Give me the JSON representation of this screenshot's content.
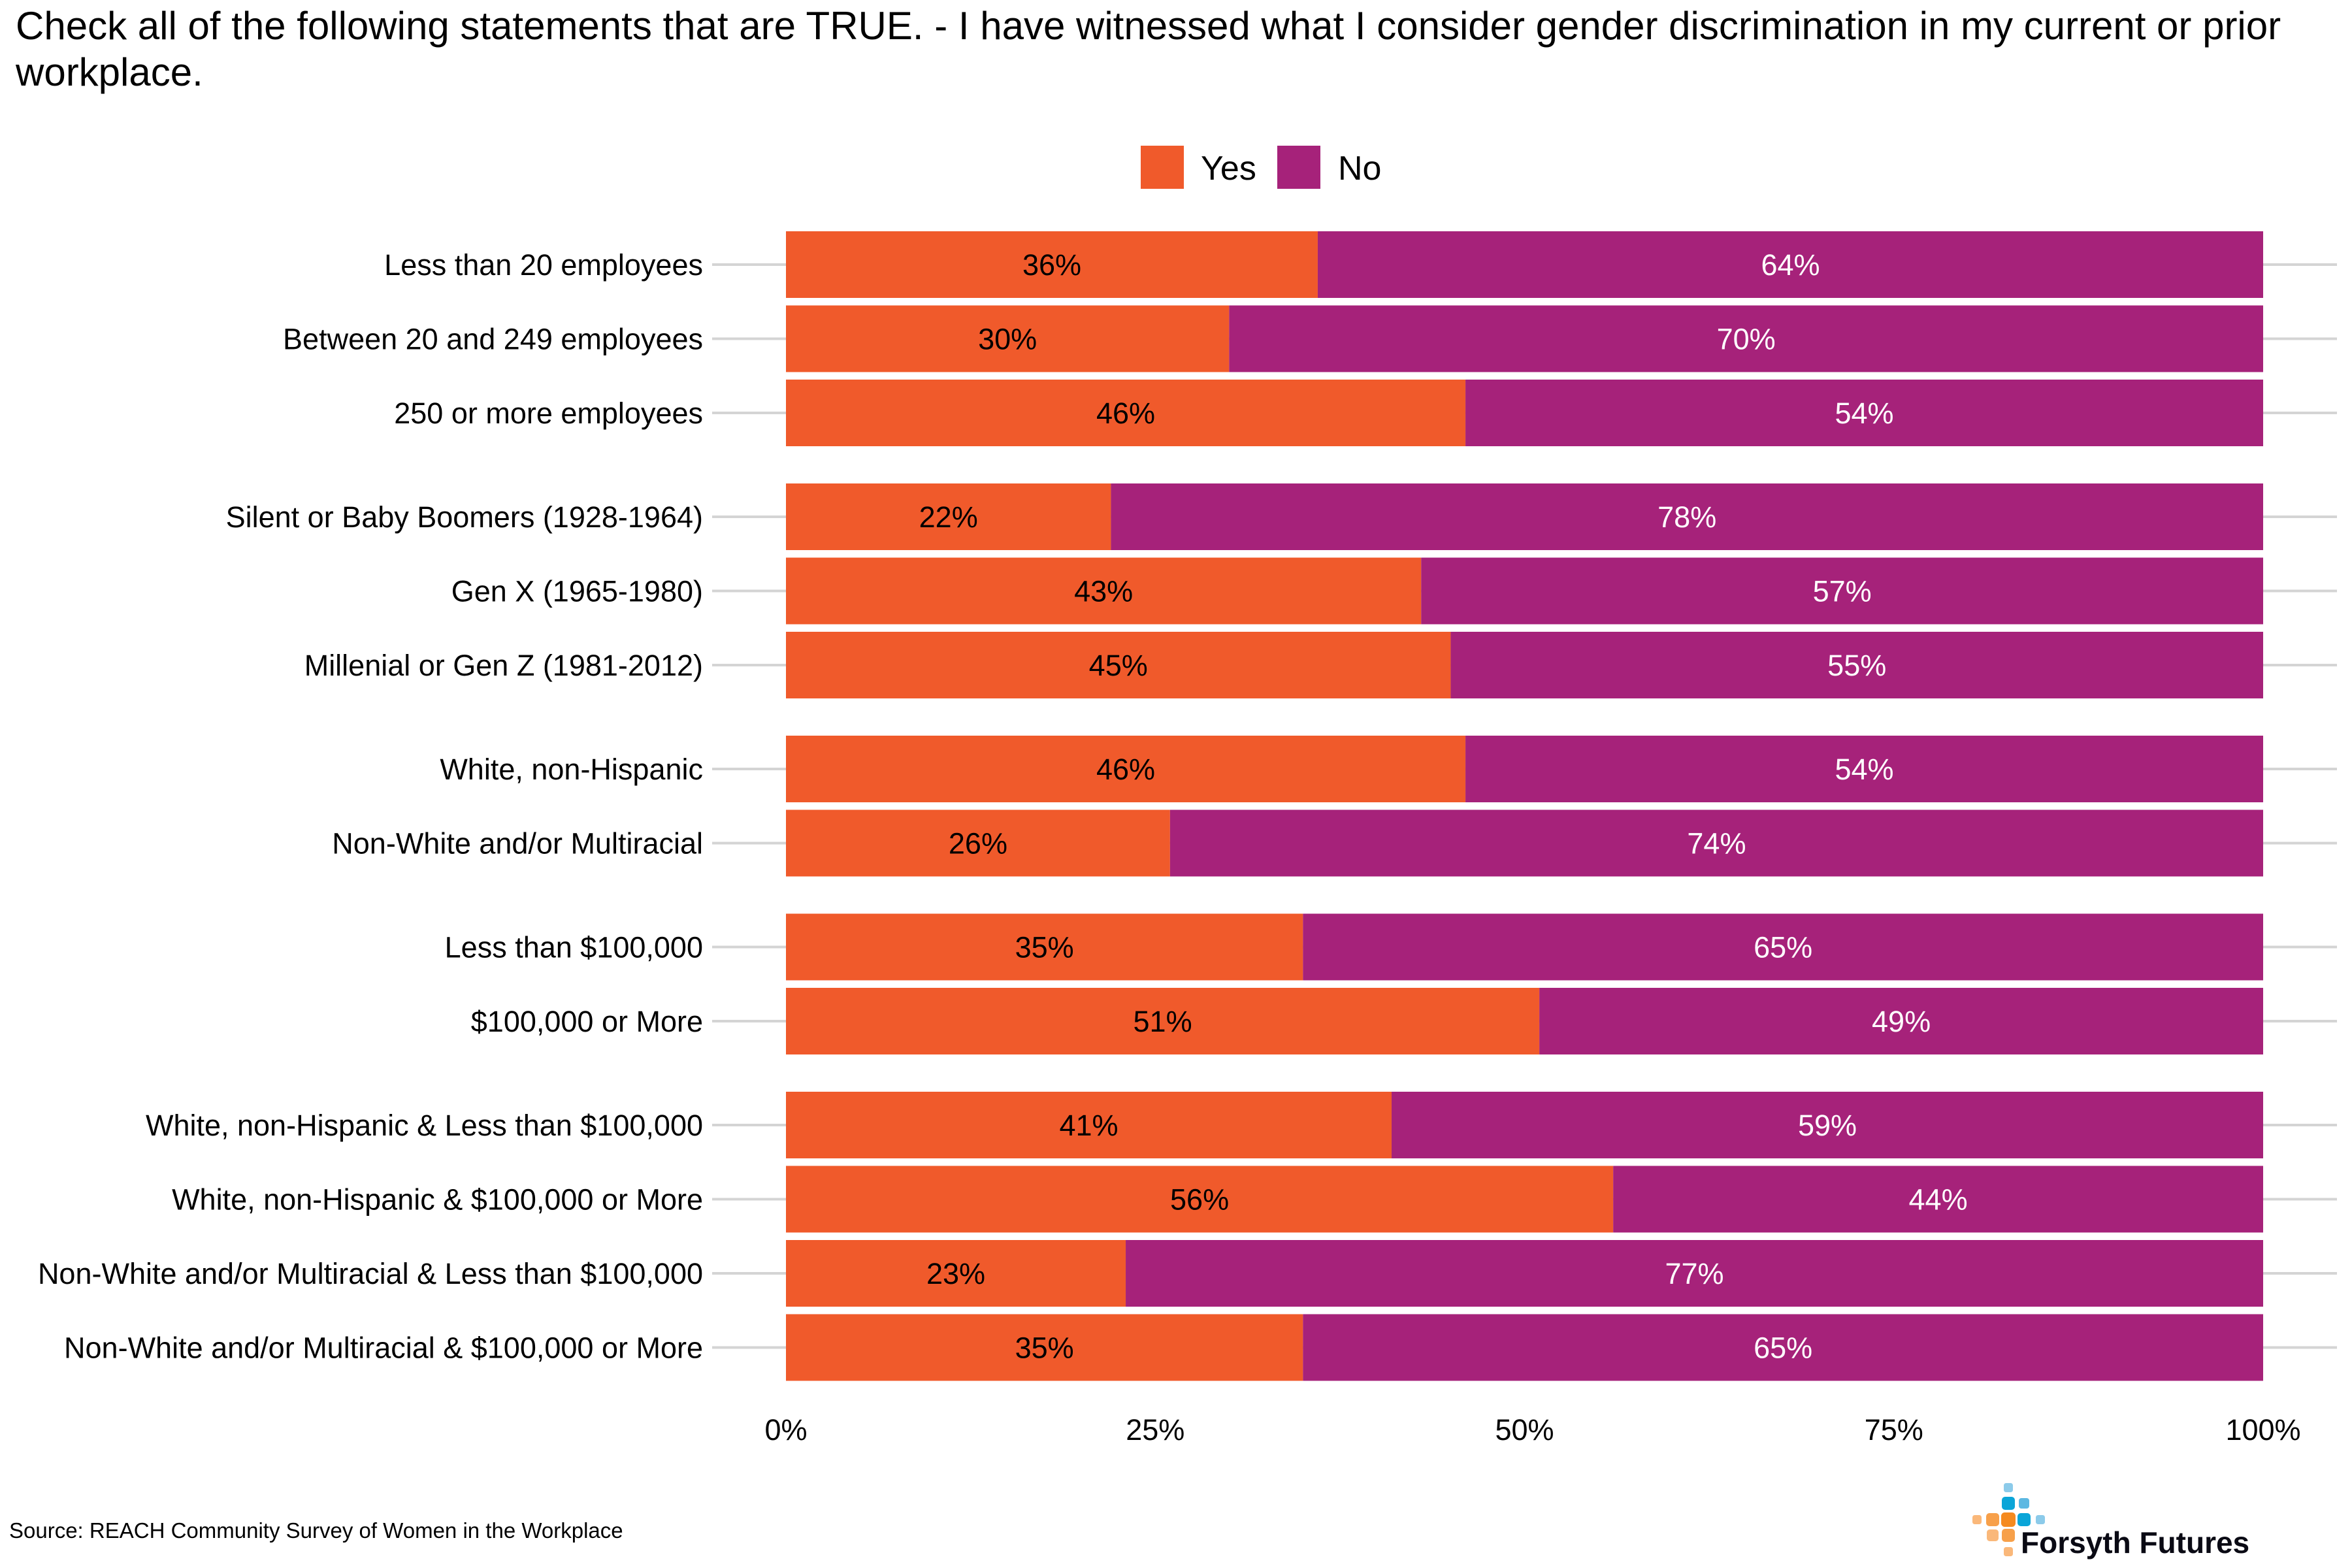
{
  "chart_data": {
    "type": "bar",
    "orientation": "horizontal",
    "stacked": true,
    "title": "Check all of the following statements that are TRUE. - I have witnessed what I consider gender discrimination in my current or prior workplace.",
    "xlabel": "",
    "ylabel": "",
    "xlim": [
      0,
      100
    ],
    "x_ticks": [
      "0%",
      "25%",
      "50%",
      "75%",
      "100%"
    ],
    "x_tick_values": [
      0,
      25,
      50,
      75,
      100
    ],
    "grid": "horizontal lines per category",
    "legend": {
      "position": "top-center",
      "entries": [
        "Yes",
        "No"
      ]
    },
    "groups": [
      [
        "Less than 20 employees",
        "Between 20 and 249 employees",
        "250 or more employees"
      ],
      [
        "Silent or Baby Boomers (1928-1964)",
        "Gen X (1965-1980)",
        "Millenial or Gen Z (1981-2012)"
      ],
      [
        "White, non-Hispanic",
        "Non-White and/or Multiracial"
      ],
      [
        "Less than $100,000",
        "$100,000 or More"
      ],
      [
        "White, non-Hispanic & Less than $100,000",
        "White, non-Hispanic & $100,000 or More",
        "Non-White and/or Multiracial & Less than $100,000",
        "Non-White and/or Multiracial & $100,000 or More"
      ]
    ],
    "categories": [
      "Less than 20 employees",
      "Between 20 and 249 employees",
      "250 or more employees",
      "Silent or Baby Boomers (1928-1964)",
      "Gen X (1965-1980)",
      "Millenial or Gen Z (1981-2012)",
      "White, non-Hispanic",
      "Non-White and/or Multiracial",
      "Less than $100,000",
      "$100,000 or More",
      "White, non-Hispanic & Less than $100,000",
      "White, non-Hispanic & $100,000 or More",
      "Non-White and/or Multiracial & Less than $100,000",
      "Non-White and/or Multiracial & $100,000 or More"
    ],
    "series": [
      {
        "name": "Yes",
        "color": "#f05a2b",
        "label_color": "#000000",
        "values": [
          36,
          30,
          46,
          22,
          43,
          45,
          46,
          26,
          35,
          51,
          41,
          56,
          23,
          35
        ]
      },
      {
        "name": "No",
        "color": "#a6227a",
        "label_color": "#ffffff",
        "values": [
          64,
          70,
          54,
          78,
          57,
          55,
          54,
          74,
          65,
          49,
          59,
          44,
          77,
          65
        ]
      }
    ],
    "value_suffix": "%"
  },
  "source": "Source: REACH Community Survey of Women in the Workplace",
  "logo": {
    "text": "Forsyth Futures",
    "colors": {
      "blue": "#0aa5d8",
      "light_blue": "#5db8e2",
      "pale_blue": "#8ccbea",
      "orange": "#f58a1f",
      "mid_orange": "#f7a04a",
      "pale_orange": "#fab87a"
    }
  }
}
